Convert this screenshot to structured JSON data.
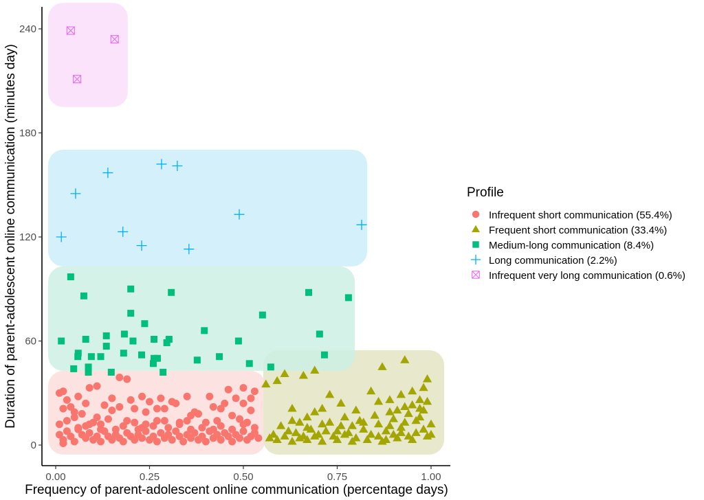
{
  "chart_data": {
    "type": "scatter",
    "title": "",
    "xlabel": "Frequency of parent-adolescent online communication (percentage days)",
    "ylabel": "Duration of parent-adolescent online communication (minutes day)",
    "xlim": [
      -0.035,
      1.05
    ],
    "ylim": [
      -12,
      264
    ],
    "x_ticks": [
      0,
      0.25,
      0.5,
      0.75,
      1.0
    ],
    "x_tick_labels": [
      "0.00",
      "0.25",
      "0.50",
      "0.75",
      "1.00"
    ],
    "y_ticks": [
      0,
      60,
      120,
      180,
      240
    ],
    "y_tick_labels": [
      "0",
      "60",
      "120",
      "180",
      "240"
    ],
    "grid": false,
    "legend": {
      "title": "Profile",
      "position": "right"
    },
    "series": [
      {
        "name": "Infrequent short communication (55.4%)",
        "key": "infrequent_short",
        "shape": "circle",
        "color": "#F8766D",
        "region": {
          "x": [
            -0.02,
            0.559
          ],
          "y": [
            -5.5,
            42.8
          ],
          "fill": "#fde2e2"
        },
        "points": [
          [
            0.01,
            30
          ],
          [
            0.02,
            31
          ],
          [
            0.06,
            28
          ],
          [
            0.09,
            33
          ],
          [
            0.17,
            39
          ],
          [
            0.19,
            38
          ],
          [
            0.11,
            34
          ],
          [
            0.13,
            23
          ],
          [
            0.02,
            21
          ],
          [
            0.04,
            22
          ],
          [
            0.05,
            19
          ],
          [
            0.07,
            18
          ],
          [
            0.09,
            12
          ],
          [
            0.11,
            16
          ],
          [
            0.12,
            9
          ],
          [
            0.15,
            27
          ],
          [
            0.15,
            20
          ],
          [
            0.17,
            22
          ],
          [
            0.2,
            26
          ],
          [
            0.21,
            21
          ],
          [
            0.23,
            28
          ],
          [
            0.25,
            25
          ],
          [
            0.24,
            19
          ],
          [
            0.27,
            21
          ],
          [
            0.28,
            27
          ],
          [
            0.29,
            21
          ],
          [
            0.31,
            25
          ],
          [
            0.32,
            24
          ],
          [
            0.33,
            13
          ],
          [
            0.35,
            28
          ],
          [
            0.37,
            19
          ],
          [
            0.38,
            18
          ],
          [
            0.43,
            14
          ],
          [
            0.46,
            32
          ],
          [
            0.5,
            33
          ],
          [
            0.48,
            27
          ],
          [
            0.5,
            24
          ],
          [
            0.52,
            20
          ],
          [
            0.51,
            13
          ],
          [
            0.53,
            31
          ],
          [
            0.41,
            28
          ],
          [
            0.42,
            22
          ],
          [
            0.44,
            21
          ],
          [
            0.47,
            17
          ],
          [
            0.39,
            10
          ],
          [
            0.29,
            14
          ],
          [
            0.26,
            11
          ],
          [
            0.22,
            9
          ],
          [
            0.19,
            14
          ],
          [
            0.16,
            9
          ],
          [
            0.01,
            12
          ],
          [
            0.01,
            6
          ],
          [
            0.02,
            3
          ],
          [
            0.02,
            1
          ],
          [
            0.03,
            8
          ],
          [
            0.04,
            5
          ],
          [
            0.05,
            2
          ],
          [
            0.06,
            10
          ],
          [
            0.07,
            6
          ],
          [
            0.08,
            4
          ],
          [
            0.09,
            7
          ],
          [
            0.1,
            3
          ],
          [
            0.11,
            5
          ],
          [
            0.12,
            2
          ],
          [
            0.13,
            8
          ],
          [
            0.14,
            5
          ],
          [
            0.15,
            3
          ],
          [
            0.16,
            6
          ],
          [
            0.17,
            4
          ],
          [
            0.18,
            2
          ],
          [
            0.19,
            7
          ],
          [
            0.2,
            5
          ],
          [
            0.21,
            3
          ],
          [
            0.22,
            6
          ],
          [
            0.23,
            4
          ],
          [
            0.24,
            8
          ],
          [
            0.25,
            3
          ],
          [
            0.26,
            5
          ],
          [
            0.27,
            2
          ],
          [
            0.28,
            7
          ],
          [
            0.29,
            4
          ],
          [
            0.3,
            6
          ],
          [
            0.31,
            3
          ],
          [
            0.32,
            8
          ],
          [
            0.33,
            5
          ],
          [
            0.34,
            2
          ],
          [
            0.35,
            6
          ],
          [
            0.36,
            4
          ],
          [
            0.37,
            7
          ],
          [
            0.38,
            3
          ],
          [
            0.39,
            5
          ],
          [
            0.4,
            2
          ],
          [
            0.41,
            8
          ],
          [
            0.42,
            4
          ],
          [
            0.43,
            6
          ],
          [
            0.44,
            3
          ],
          [
            0.45,
            7
          ],
          [
            0.46,
            5
          ],
          [
            0.47,
            2
          ],
          [
            0.48,
            6
          ],
          [
            0.49,
            4
          ],
          [
            0.5,
            8
          ],
          [
            0.51,
            3
          ],
          [
            0.52,
            5
          ],
          [
            0.53,
            7
          ],
          [
            0.54,
            4
          ],
          [
            0.03,
            14
          ],
          [
            0.05,
            16
          ],
          [
            0.08,
            11
          ],
          [
            0.1,
            13
          ],
          [
            0.14,
            15
          ],
          [
            0.18,
            11
          ],
          [
            0.21,
            13
          ],
          [
            0.24,
            12
          ],
          [
            0.27,
            14
          ],
          [
            0.3,
            10
          ],
          [
            0.33,
            12
          ],
          [
            0.36,
            9
          ],
          [
            0.4,
            13
          ],
          [
            0.44,
            11
          ],
          [
            0.47,
            9
          ],
          [
            0.5,
            12
          ],
          [
            0.53,
            10
          ],
          [
            0.06,
            9
          ],
          [
            0.12,
            12
          ],
          [
            0.23,
            10
          ],
          [
            0.35,
            14
          ],
          [
            0.42,
            9
          ],
          [
            0.49,
            15
          ],
          [
            0.08,
            24
          ],
          [
            0.03,
            26
          ],
          [
            0.36,
            17
          ],
          [
            0.45,
            24
          ],
          [
            0.52,
            27
          ]
        ]
      },
      {
        "name": "Frequent short communication (33.4%)",
        "key": "frequent_short",
        "shape": "triangle",
        "color": "#A3A500",
        "region": {
          "x": [
            0.553,
            1.035
          ],
          "y": [
            -5.5,
            54.7
          ],
          "fill": "#e8e8cd"
        },
        "points": [
          [
            0.56,
            35
          ],
          [
            0.59,
            37
          ],
          [
            0.61,
            41
          ],
          [
            0.66,
            40
          ],
          [
            0.69,
            43
          ],
          [
            0.87,
            45
          ],
          [
            0.93,
            49
          ],
          [
            0.99,
            38
          ],
          [
            0.73,
            29
          ],
          [
            0.71,
            21
          ],
          [
            0.76,
            24
          ],
          [
            0.84,
            31
          ],
          [
            0.86,
            25
          ],
          [
            0.89,
            26
          ],
          [
            0.92,
            29
          ],
          [
            0.95,
            31
          ],
          [
            0.97,
            26
          ],
          [
            0.98,
            33
          ],
          [
            0.63,
            21
          ],
          [
            0.65,
            13
          ],
          [
            0.67,
            16
          ],
          [
            0.69,
            19
          ],
          [
            0.6,
            11
          ],
          [
            0.62,
            8
          ],
          [
            0.58,
            6
          ],
          [
            0.57,
            4
          ],
          [
            0.61,
            5
          ],
          [
            0.64,
            7
          ],
          [
            0.66,
            5
          ],
          [
            0.68,
            9
          ],
          [
            0.7,
            6
          ],
          [
            0.72,
            8
          ],
          [
            0.74,
            5
          ],
          [
            0.76,
            11
          ],
          [
            0.78,
            7
          ],
          [
            0.8,
            4
          ],
          [
            0.82,
            9
          ],
          [
            0.84,
            6
          ],
          [
            0.86,
            12
          ],
          [
            0.88,
            8
          ],
          [
            0.9,
            15
          ],
          [
            0.92,
            10
          ],
          [
            0.94,
            18
          ],
          [
            0.96,
            14
          ],
          [
            0.98,
            20
          ],
          [
            1.0,
            12
          ],
          [
            0.59,
            3
          ],
          [
            0.63,
            2
          ],
          [
            0.67,
            3
          ],
          [
            0.71,
            2
          ],
          [
            0.75,
            3
          ],
          [
            0.79,
            2
          ],
          [
            0.83,
            3
          ],
          [
            0.87,
            2
          ],
          [
            0.91,
            4
          ],
          [
            0.95,
            3
          ],
          [
            0.99,
            5
          ],
          [
            0.73,
            13
          ],
          [
            0.77,
            16
          ],
          [
            0.81,
            14
          ],
          [
            0.85,
            17
          ],
          [
            0.89,
            19
          ],
          [
            0.93,
            22
          ],
          [
            0.97,
            21
          ],
          [
            0.96,
            7
          ],
          [
            0.98,
            9
          ],
          [
            1.0,
            6
          ],
          [
            0.94,
            5
          ],
          [
            0.92,
            7
          ],
          [
            0.9,
            6
          ],
          [
            0.88,
            3
          ],
          [
            0.86,
            5
          ],
          [
            0.82,
            13
          ],
          [
            0.79,
            11
          ],
          [
            0.75,
            8
          ],
          [
            0.71,
            12
          ],
          [
            0.67,
            10
          ],
          [
            0.63,
            14
          ],
          [
            0.99,
            25
          ],
          [
            0.97,
            16
          ],
          [
            0.95,
            23
          ],
          [
            0.93,
            13
          ],
          [
            0.91,
            20
          ],
          [
            0.89,
            11
          ],
          [
            0.8,
            20
          ],
          [
            0.77,
            6
          ],
          [
            0.69,
            5
          ],
          [
            0.65,
            4
          ]
        ]
      },
      {
        "name": "Medium-long communication (8.4%)",
        "key": "medium_long",
        "shape": "square",
        "color": "#00BF7D",
        "region": {
          "x": [
            -0.02,
            0.797
          ],
          "y": [
            42.8,
            103
          ],
          "fill": "#ccf0e3"
        },
        "points": [
          [
            0.04,
            97
          ],
          [
            0.075,
            86
          ],
          [
            0.2,
            90
          ],
          [
            0.308,
            88
          ],
          [
            0.2,
            76
          ],
          [
            0.237,
            70
          ],
          [
            0.015,
            60
          ],
          [
            0.08,
            61
          ],
          [
            0.135,
            63
          ],
          [
            0.135,
            57
          ],
          [
            0.183,
            64
          ],
          [
            0.181,
            53
          ],
          [
            0.06,
            53
          ],
          [
            0.059,
            51
          ],
          [
            0.095,
            51
          ],
          [
            0.12,
            51
          ],
          [
            0.048,
            44
          ],
          [
            0.087,
            45
          ],
          [
            0.087,
            42
          ],
          [
            0.148,
            42
          ],
          [
            0.206,
            60
          ],
          [
            0.262,
            61
          ],
          [
            0.296,
            59
          ],
          [
            0.302,
            61
          ],
          [
            0.396,
            66
          ],
          [
            0.229,
            52
          ],
          [
            0.262,
            50
          ],
          [
            0.271,
            50
          ],
          [
            0.26,
            47
          ],
          [
            0.377,
            49
          ],
          [
            0.436,
            51
          ],
          [
            0.516,
            47
          ],
          [
            0.286,
            42
          ],
          [
            0.573,
            45
          ],
          [
            0.551,
            75
          ],
          [
            0.674,
            88
          ],
          [
            0.78,
            85
          ],
          [
            0.703,
            64
          ],
          [
            0.716,
            52
          ],
          [
            0.487,
            60
          ]
        ]
      },
      {
        "name": "Long communication (2.2%)",
        "key": "long",
        "shape": "plus",
        "color": "#00B0F6",
        "region": {
          "x": [
            -0.02,
            0.83
          ],
          "y": [
            103,
            170.3
          ],
          "fill": "#d4f0fb"
        },
        "points": [
          [
            0.015,
            120
          ],
          [
            0.053,
            145
          ],
          [
            0.139,
            157
          ],
          [
            0.179,
            123
          ],
          [
            0.229,
            115
          ],
          [
            0.282,
            162
          ],
          [
            0.324,
            161
          ],
          [
            0.355,
            113
          ],
          [
            0.489,
            133
          ],
          [
            0.815,
            127
          ]
        ]
      },
      {
        "name": "Infrequent very long communication (0.6%)",
        "key": "infrequent_very_long",
        "shape": "boxx",
        "color": "#E76BF3",
        "region": {
          "x": [
            -0.02,
            0.192
          ],
          "y": [
            194.9,
            255
          ],
          "fill": "#fbe3fb"
        },
        "points": [
          [
            0.04,
            239
          ],
          [
            0.157,
            234
          ],
          [
            0.057,
            211
          ]
        ]
      }
    ]
  }
}
